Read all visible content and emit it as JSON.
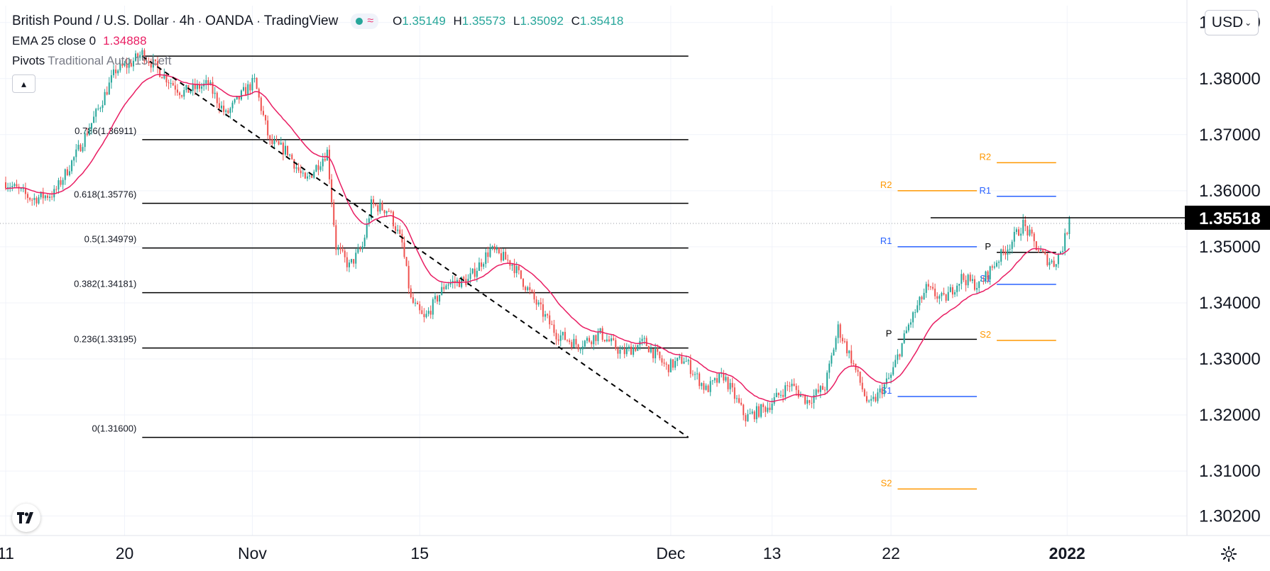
{
  "legend": {
    "symbol": "British Pound / U.S. Dollar",
    "interval": "4h",
    "exchange": "OANDA",
    "platform": "TradingView",
    "ohlc": [
      {
        "label": "O",
        "value": "1.35149"
      },
      {
        "label": "H",
        "value": "1.35573"
      },
      {
        "label": "L",
        "value": "1.35092"
      },
      {
        "label": "C",
        "value": "1.35418"
      }
    ],
    "ema_label": "EMA 25 close 0",
    "ema_value": "1.34888",
    "pivots_label": "Pivots",
    "pivots_params": "Traditional Auto 15 Left"
  },
  "toolbar": {
    "currency": "USD",
    "collapse_icon": "chevron-up-icon",
    "logo_icon": "tradingview-logo-icon",
    "settings_icon": "gear-icon"
  },
  "colors": {
    "up": "#26a69a",
    "down": "#ef5350",
    "ema": "#e91e63",
    "fib": "#000000",
    "pivot_orange": "#ff9800",
    "pivot_blue": "#2962ff",
    "pivot_black": "#000000"
  },
  "chart_data": {
    "type": "candlestick",
    "title": "British Pound / U.S. Dollar",
    "ylim": [
      1.2985,
      1.393
    ],
    "y_ticks": [
      "1.39000",
      "1.38000",
      "1.37000",
      "1.36000",
      "1.35000",
      "1.34000",
      "1.33000",
      "1.32000",
      "1.31000",
      "1.30200"
    ],
    "y_tick_values": [
      1.39,
      1.38,
      1.37,
      1.36,
      1.35,
      1.34,
      1.33,
      1.32,
      1.31,
      1.302
    ],
    "x_ticks": [
      "11",
      "20",
      "Nov",
      "15",
      "Dec",
      "13",
      "22",
      "2022"
    ],
    "x_tick_bars": [
      0,
      54,
      112,
      188,
      302,
      348,
      402,
      482
    ],
    "bar_count": 500,
    "last_price": "1.35518",
    "last_price_value": 1.35518,
    "price_anchors": [
      [
        0,
        1.3615
      ],
      [
        12,
        1.3585
      ],
      [
        22,
        1.3595
      ],
      [
        32,
        1.3665
      ],
      [
        42,
        1.3745
      ],
      [
        50,
        1.3815
      ],
      [
        56,
        1.3825
      ],
      [
        62,
        1.3845
      ],
      [
        72,
        1.3805
      ],
      [
        80,
        1.3775
      ],
      [
        92,
        1.379
      ],
      [
        100,
        1.3735
      ],
      [
        108,
        1.3775
      ],
      [
        113,
        1.3795
      ],
      [
        120,
        1.3685
      ],
      [
        128,
        1.367
      ],
      [
        136,
        1.3615
      ],
      [
        146,
        1.367
      ],
      [
        150,
        1.35
      ],
      [
        156,
        1.3465
      ],
      [
        162,
        1.35
      ],
      [
        166,
        1.3575
      ],
      [
        174,
        1.3565
      ],
      [
        180,
        1.3505
      ],
      [
        184,
        1.3405
      ],
      [
        190,
        1.337
      ],
      [
        200,
        1.3435
      ],
      [
        210,
        1.344
      ],
      [
        220,
        1.3495
      ],
      [
        230,
        1.347
      ],
      [
        240,
        1.3405
      ],
      [
        250,
        1.3345
      ],
      [
        260,
        1.3325
      ],
      [
        270,
        1.3345
      ],
      [
        280,
        1.331
      ],
      [
        290,
        1.333
      ],
      [
        300,
        1.3285
      ],
      [
        308,
        1.33
      ],
      [
        318,
        1.3245
      ],
      [
        326,
        1.327
      ],
      [
        336,
        1.3195
      ],
      [
        346,
        1.3215
      ],
      [
        356,
        1.3255
      ],
      [
        364,
        1.3225
      ],
      [
        372,
        1.325
      ],
      [
        378,
        1.3355
      ],
      [
        384,
        1.33
      ],
      [
        392,
        1.3215
      ],
      [
        396,
        1.3235
      ],
      [
        402,
        1.327
      ],
      [
        410,
        1.336
      ],
      [
        418,
        1.3425
      ],
      [
        426,
        1.3405
      ],
      [
        434,
        1.3445
      ],
      [
        442,
        1.343
      ],
      [
        450,
        1.3475
      ],
      [
        456,
        1.3505
      ],
      [
        462,
        1.354
      ],
      [
        468,
        1.35
      ],
      [
        472,
        1.348
      ],
      [
        476,
        1.347
      ],
      [
        480,
        1.35
      ],
      [
        483,
        1.3545
      ]
    ],
    "ema_period": 25,
    "fibonacci": [
      {
        "label": "0.786(1.36911)",
        "value": 1.36911
      },
      {
        "label": "0.618(1.35776)",
        "value": 1.35776
      },
      {
        "label": "0.5(1.34979)",
        "value": 1.34979
      },
      {
        "label": "0.382(1.34181)",
        "value": 1.34181
      },
      {
        "label": "0.236(1.33195)",
        "value": 1.33195
      },
      {
        "label": "0(1.31600)",
        "value": 1.316
      }
    ],
    "fib_top": 1.384,
    "fib_start_bar": 62,
    "fib_end_bar": 310,
    "trendline": {
      "from": [
        62,
        1.384
      ],
      "to": [
        310,
        1.316
      ]
    },
    "resistance": {
      "from_bar": 420,
      "value": 1.35518
    },
    "pivot_sets": [
      {
        "from_bar": 396,
        "to_bar": 441,
        "levels": [
          {
            "label": "R2",
            "value": 1.36,
            "color": "orange"
          },
          {
            "label": "R1",
            "value": 1.35,
            "color": "blue"
          },
          {
            "label": "P",
            "value": 1.3335,
            "color": "black"
          },
          {
            "label": "S1",
            "value": 1.3233,
            "color": "blue"
          },
          {
            "label": "S2",
            "value": 1.3068,
            "color": "orange"
          }
        ]
      },
      {
        "from_bar": 441,
        "to_bar": 477,
        "levels": [
          {
            "label": "R2",
            "value": 1.365,
            "color": "orange"
          },
          {
            "label": "R1",
            "value": 1.359,
            "color": "blue"
          },
          {
            "label": "P",
            "value": 1.349,
            "color": "black"
          },
          {
            "label": "S1",
            "value": 1.3433,
            "color": "blue"
          },
          {
            "label": "S2",
            "value": 1.3333,
            "color": "orange"
          }
        ]
      }
    ]
  }
}
